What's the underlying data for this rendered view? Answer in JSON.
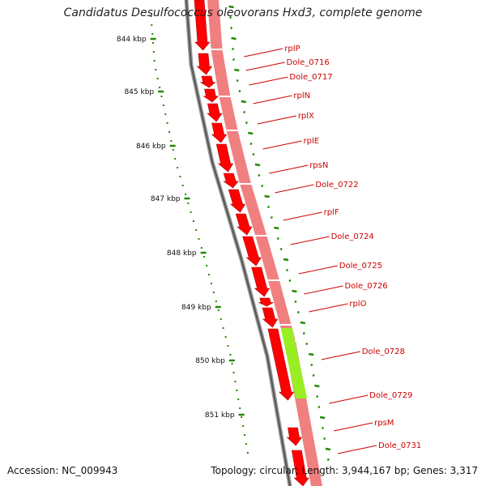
{
  "title": "Candidatus Desulfococcus oleovorans Hxd3, complete genome",
  "accession": "Accession: NC_009943",
  "topology": "Topology: circular; Length: 3,944,167 bp; Genes: 3,317",
  "scale_labels": [
    "844 kbp",
    "845 kbp",
    "846 kbp",
    "847 kbp",
    "848 kbp",
    "849 kbp",
    "850 kbp",
    "851 kbp"
  ],
  "gene_labels": [
    "rplP",
    "Dole_0716",
    "Dole_0717",
    "rplN",
    "rplX",
    "rplE",
    "rpsN",
    "Dole_0722",
    "rplF",
    "Dole_0724",
    "Dole_0725",
    "Dole_0726",
    "rplO",
    "Dole_0728",
    "Dole_0729",
    "rpsM",
    "Dole_0731"
  ],
  "colors": {
    "cds": "#ff0000",
    "cds_track": "#f08080",
    "highlight": "#99ee22",
    "label": "#cc0000",
    "scale": "#228800",
    "backbone": "#777777"
  }
}
